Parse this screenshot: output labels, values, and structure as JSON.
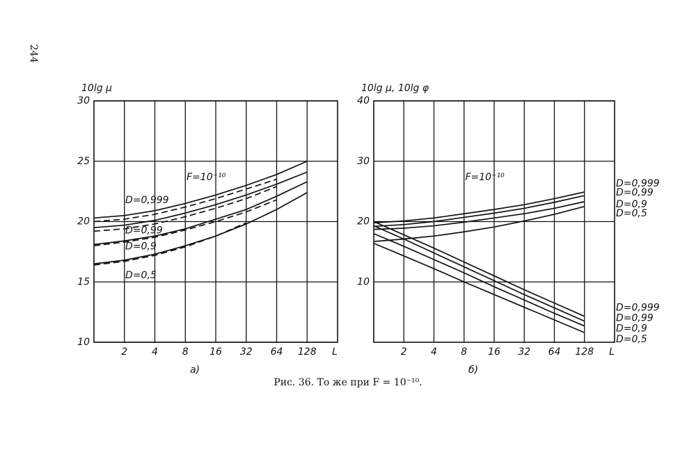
{
  "page_number": "244",
  "caption": "Рис. 36. То же при F = 10⁻¹⁰.",
  "chart_data": [
    {
      "type": "line",
      "panel_label": "а)",
      "ylabel": "10lg μ",
      "xlabel": "L",
      "annotation": "F=10⁻¹⁰",
      "x": [
        1,
        2,
        4,
        8,
        16,
        32,
        64,
        128
      ],
      "log_x": 2,
      "xlim": [
        1,
        256
      ],
      "xticks": [
        2,
        4,
        8,
        16,
        32,
        64,
        128
      ],
      "ylim": [
        10,
        30
      ],
      "yticks": [
        10,
        15,
        20,
        25,
        30
      ],
      "grid": true,
      "series": [
        {
          "name": "D=0,999",
          "color": "#111",
          "values": [
            20.3,
            20.5,
            20.9,
            21.5,
            22.2,
            23.0,
            23.9,
            25.0
          ]
        },
        {
          "name": "D=0,99",
          "color": "#111",
          "values": [
            19.5,
            19.7,
            20.1,
            20.7,
            21.4,
            22.2,
            23.1,
            24.1
          ]
        },
        {
          "name": "D=0,9",
          "color": "#111",
          "values": [
            18.1,
            18.4,
            18.8,
            19.4,
            20.2,
            21.0,
            22.1,
            23.3
          ]
        },
        {
          "name": "D=0,5",
          "color": "#111",
          "values": [
            16.5,
            16.8,
            17.3,
            18.0,
            18.8,
            19.8,
            21.0,
            22.4
          ]
        },
        {
          "dashed": true,
          "color": "#111",
          "values": [
            20.0,
            20.2,
            20.6,
            21.2,
            21.9,
            22.7,
            23.5,
            null
          ]
        },
        {
          "dashed": true,
          "color": "#111",
          "values": [
            19.2,
            19.4,
            19.8,
            20.4,
            21.1,
            21.9,
            22.9,
            null
          ]
        },
        {
          "dashed": true,
          "color": "#111",
          "values": [
            18.0,
            18.3,
            18.7,
            19.3,
            20.0,
            20.8,
            21.8,
            null
          ]
        },
        {
          "dashed": true,
          "color": "#111",
          "values": [
            16.4,
            16.7,
            17.2,
            17.9,
            18.8,
            19.9,
            null,
            null
          ]
        }
      ]
    },
    {
      "type": "line",
      "panel_label": "б)",
      "ylabel": "10lg μ, 10lg φ",
      "xlabel": "L",
      "annotation": "F=10⁻¹⁰",
      "x": [
        1,
        2,
        4,
        8,
        16,
        32,
        64,
        128
      ],
      "log_x": 2,
      "xlim": [
        1,
        256
      ],
      "xticks": [
        2,
        4,
        8,
        16,
        32,
        64,
        128
      ],
      "ylim": [
        0,
        40
      ],
      "yticks": [
        10,
        20,
        30,
        40
      ],
      "grid": true,
      "series": [
        {
          "name": "D=0,999",
          "color": "#111",
          "values": [
            19.8,
            20.1,
            20.6,
            21.3,
            22.0,
            22.8,
            23.8,
            24.9
          ]
        },
        {
          "name": "D=0,99",
          "color": "#111",
          "values": [
            19.2,
            19.5,
            20.0,
            20.7,
            21.4,
            22.2,
            23.2,
            24.3
          ]
        },
        {
          "name": "D=0,9",
          "color": "#111",
          "values": [
            18.7,
            18.9,
            19.3,
            19.9,
            20.6,
            21.3,
            22.2,
            23.3
          ]
        },
        {
          "name": "D=0,5",
          "color": "#111",
          "values": [
            16.7,
            17.1,
            17.6,
            18.3,
            19.1,
            20.1,
            21.2,
            22.5
          ]
        },
        {
          "name": "D=0,999",
          "color": "#111",
          "values": [
            20.0,
            17.8,
            15.6,
            13.3,
            11.0,
            8.7,
            6.5,
            4.3
          ]
        },
        {
          "name": "D=0,99",
          "color": "#111",
          "values": [
            19.3,
            17.1,
            14.8,
            12.5,
            10.2,
            7.9,
            5.7,
            3.5
          ]
        },
        {
          "name": "D=0,9",
          "color": "#111",
          "values": [
            18.0,
            15.9,
            13.7,
            11.5,
            9.2,
            7.0,
            4.8,
            2.7
          ]
        },
        {
          "name": "D=0,5",
          "color": "#111",
          "values": [
            16.4,
            14.3,
            12.2,
            10.0,
            7.9,
            5.8,
            3.7,
            1.6
          ]
        }
      ]
    }
  ]
}
